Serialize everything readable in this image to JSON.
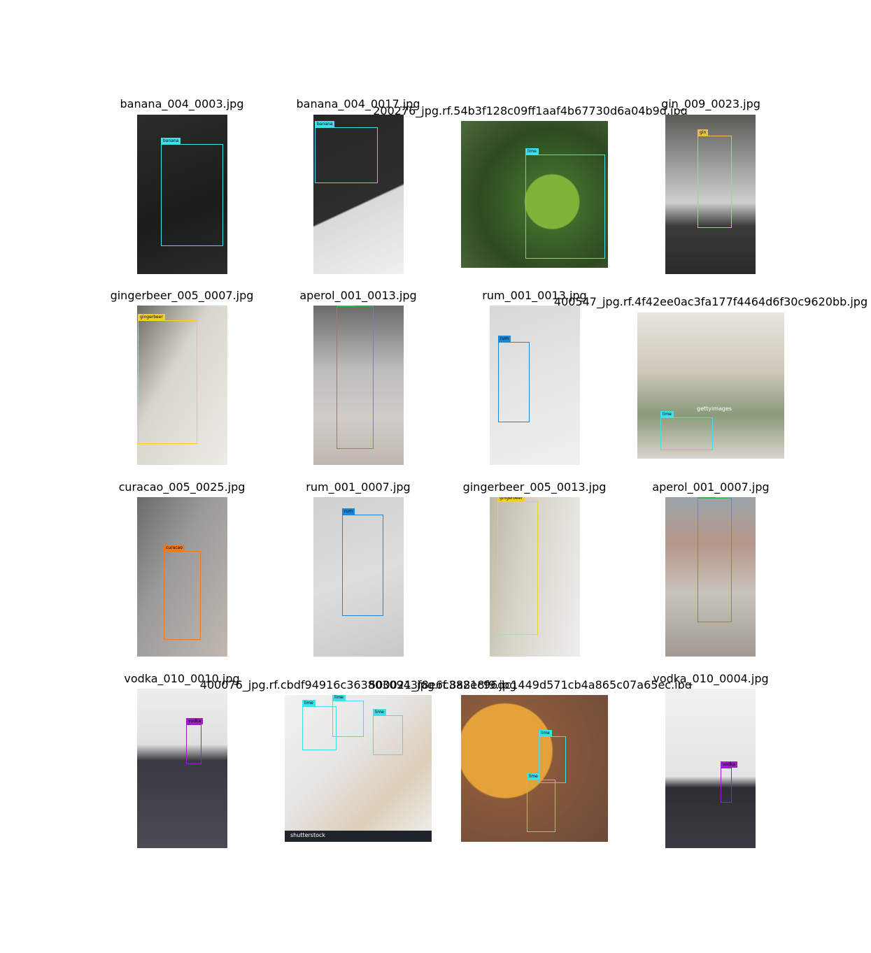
{
  "colors": {
    "banana": "#3fe0e8",
    "lime": "#3fe0e8",
    "gin": "#e8c13a",
    "gingerbeer": "#f2d21f",
    "aperol": "#3bb24a",
    "rum": "#1b86d6",
    "curacao": "#f07a1f",
    "vodka": "#9b1fc7"
  },
  "tiles": [
    {
      "title": "banana_004_0003.jpg",
      "boxes": [
        {
          "label": "banana"
        }
      ]
    },
    {
      "title": "banana_004_0017.jpg",
      "boxes": [
        {
          "label": "banana"
        }
      ]
    },
    {
      "title": "200276_jpg.rf.54b3f128c09ff1aaf4b67730d6a04b9d.jpg",
      "boxes": [
        {
          "label": "lime"
        }
      ]
    },
    {
      "title": "gin_009_0023.jpg",
      "boxes": [
        {
          "label": "gin"
        }
      ]
    },
    {
      "title": "gingerbeer_005_0007.jpg",
      "boxes": [
        {
          "label": "gingerbeer"
        }
      ]
    },
    {
      "title": "aperol_001_0013.jpg",
      "boxes": [
        {
          "label": "aperol"
        }
      ]
    },
    {
      "title": "rum_001_0013.jpg",
      "boxes": [
        {
          "label": "rum"
        }
      ]
    },
    {
      "title": "400547_jpg.rf.4f42ee0ac3fa177f4464d6f30c9620bb.jpg",
      "boxes": [
        {
          "label": "lime"
        }
      ],
      "watermark": "gettyimages"
    },
    {
      "title": "curacao_005_0025.jpg",
      "boxes": [
        {
          "label": "curacao"
        }
      ]
    },
    {
      "title": "rum_001_0007.jpg",
      "boxes": [
        {
          "label": "rum"
        }
      ]
    },
    {
      "title": "gingerbeer_005_0013.jpg",
      "boxes": [
        {
          "label": "gingerbeer"
        }
      ]
    },
    {
      "title": "aperol_001_0007.jpg",
      "boxes": [
        {
          "label": "aperol"
        }
      ]
    },
    {
      "title": "vodka_010_0010.jpg",
      "boxes": [
        {
          "label": "vodka"
        }
      ]
    },
    {
      "title": "400076_jpg.rf.cbdf94916c3638030943f8e6c38218f9.jpg",
      "boxes": [
        {
          "label": "lime"
        },
        {
          "label": "lime"
        },
        {
          "label": "lime"
        }
      ],
      "watermark": "shutterstock"
    },
    {
      "title": "500021_jpg.rf.8a8ec96dc1449d571cb4a865c07a65ec.jpg",
      "boxes": [
        {
          "label": "lime"
        },
        {
          "label": "lime"
        }
      ]
    },
    {
      "title": "vodka_010_0004.jpg",
      "boxes": [
        {
          "label": "vodka"
        }
      ]
    }
  ]
}
